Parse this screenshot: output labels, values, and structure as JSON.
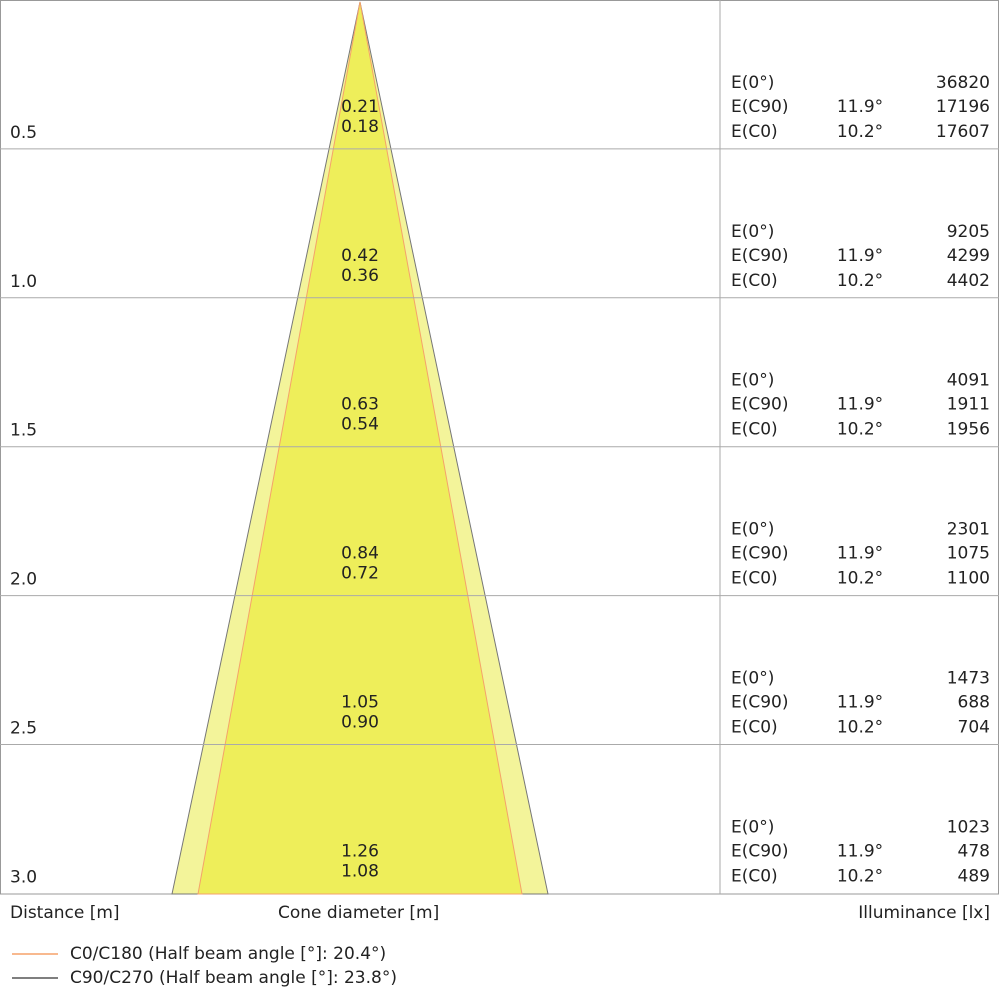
{
  "labels": {
    "e0": "E(0°)",
    "ec90": "E(C90)",
    "ec0": "E(C0)"
  },
  "rows": [
    {
      "distance": "0.5",
      "diameter_c90": "0.21",
      "diameter_c0": "0.18",
      "e0": "36820",
      "ec90_angle": "11.9°",
      "ec90": "17196",
      "ec0_angle": "10.2°",
      "ec0": "17607"
    },
    {
      "distance": "1.0",
      "diameter_c90": "0.42",
      "diameter_c0": "0.36",
      "e0": "9205",
      "ec90_angle": "11.9°",
      "ec90": "4299",
      "ec0_angle": "10.2°",
      "ec0": "4402"
    },
    {
      "distance": "1.5",
      "diameter_c90": "0.63",
      "diameter_c0": "0.54",
      "e0": "4091",
      "ec90_angle": "11.9°",
      "ec90": "1911",
      "ec0_angle": "10.2°",
      "ec0": "1956"
    },
    {
      "distance": "2.0",
      "diameter_c90": "0.84",
      "diameter_c0": "0.72",
      "e0": "2301",
      "ec90_angle": "11.9°",
      "ec90": "1075",
      "ec0_angle": "10.2°",
      "ec0": "1100"
    },
    {
      "distance": "2.5",
      "diameter_c90": "1.05",
      "diameter_c0": "0.90",
      "e0": "1473",
      "ec90_angle": "11.9°",
      "ec90": "688",
      "ec0_angle": "10.2°",
      "ec0": "704"
    },
    {
      "distance": "3.0",
      "diameter_c90": "1.26",
      "diameter_c0": "1.08",
      "e0": "1023",
      "ec90_angle": "11.9°",
      "ec90": "478",
      "ec0_angle": "10.2°",
      "ec0": "489"
    }
  ],
  "footer": {
    "distance": "Distance [m]",
    "diameter": "Cone diameter [m]",
    "illuminance": "Illuminance [lx]"
  },
  "legend": [
    "C0/C180 (Half beam angle [°]: 20.4°)",
    "C90/C270 (Half beam angle [°]: 23.8°)"
  ]
}
